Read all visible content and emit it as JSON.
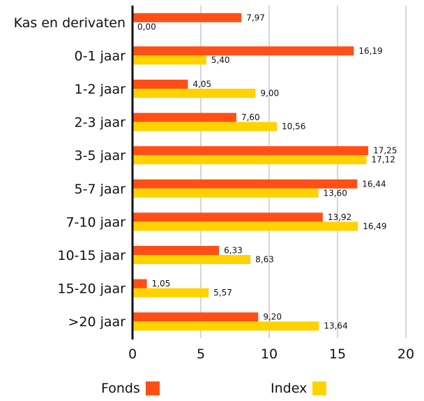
{
  "chart_data": {
    "type": "bar",
    "orientation": "horizontal",
    "categories": [
      "Kas en derivaten",
      "0-1 jaar",
      "1-2 jaar",
      "2-3 jaar",
      "3-5 jaar",
      "5-7 jaar",
      "7-10 jaar",
      "10-15 jaar",
      "15-20 jaar",
      ">20 jaar"
    ],
    "series": [
      {
        "name": "Fonds",
        "color": "#ff4f17",
        "values": [
          7.97,
          16.19,
          4.05,
          7.6,
          17.25,
          16.44,
          13.92,
          6.33,
          1.05,
          9.2
        ],
        "labels": [
          "7,97",
          "16,19",
          "4,05",
          "7,60",
          "17,25",
          "16,44",
          "13,92",
          "6,33",
          "1,05",
          "9,20"
        ]
      },
      {
        "name": "Index",
        "color": "#ffd200",
        "values": [
          0.0,
          5.4,
          9.0,
          10.56,
          17.12,
          13.6,
          16.49,
          8.63,
          5.57,
          13.64
        ],
        "labels": [
          "0,00",
          "5,40",
          "9,00",
          "10,56",
          "17,12",
          "13,60",
          "16,49",
          "8,63",
          "5,57",
          "13,64"
        ]
      }
    ],
    "xlim": [
      0,
      20
    ],
    "xticks": [
      0,
      5,
      10,
      15,
      20
    ],
    "grid": true,
    "legend_position": "bottom"
  },
  "legend": {
    "fonds": "Fonds",
    "index": "Index"
  }
}
